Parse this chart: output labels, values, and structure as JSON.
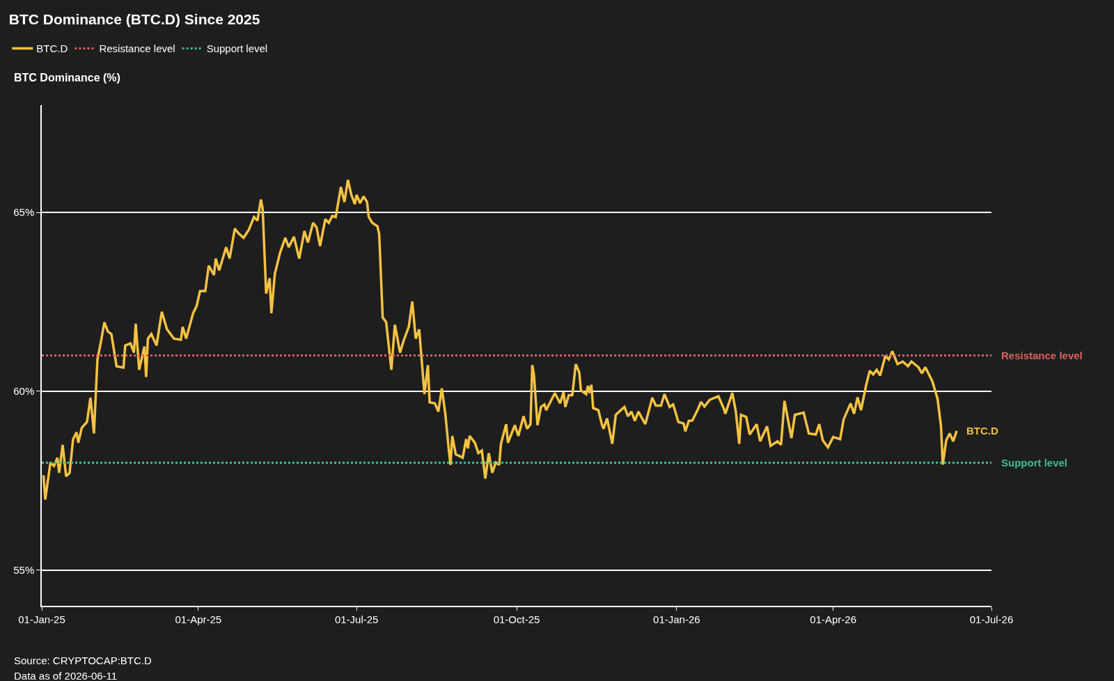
{
  "chart_data": {
    "type": "line",
    "title": "BTC Dominance (BTC.D) Since 2025",
    "ylabel": "BTC Dominance (%)",
    "annotations": [
      "Source: CRYPTOCAP:BTC.D",
      "Data as of 2026-06-11"
    ],
    "x": [
      "2025-01-02",
      "2025-01-03",
      "2025-01-06",
      "2025-01-08",
      "2025-01-10",
      "2025-01-11",
      "2025-01-13",
      "2025-01-15",
      "2025-01-17",
      "2025-01-19",
      "2025-01-21",
      "2025-01-22",
      "2025-01-24",
      "2025-01-27",
      "2025-01-29",
      "2025-01-31",
      "2025-02-02",
      "2025-02-04",
      "2025-02-06",
      "2025-02-08",
      "2025-02-10",
      "2025-02-13",
      "2025-02-17",
      "2025-02-18",
      "2025-02-21",
      "2025-02-23",
      "2025-02-24",
      "2025-02-26",
      "2025-03-01",
      "2025-03-02",
      "2025-03-03",
      "2025-03-05",
      "2025-03-08",
      "2025-03-11",
      "2025-03-14",
      "2025-03-18",
      "2025-03-22",
      "2025-03-23",
      "2025-03-25",
      "2025-03-29",
      "2025-03-31",
      "2025-04-02",
      "2025-04-05",
      "2025-04-07",
      "2025-04-10",
      "2025-04-11",
      "2025-04-13",
      "2025-04-17",
      "2025-04-19",
      "2025-04-22",
      "2025-04-24",
      "2025-04-27",
      "2025-04-30",
      "2025-05-03",
      "2025-05-05",
      "2025-05-07",
      "2025-05-08",
      "2025-05-10",
      "2025-05-12",
      "2025-05-13",
      "2025-05-15",
      "2025-05-18",
      "2025-05-21",
      "2025-05-23",
      "2025-05-26",
      "2025-05-29",
      "2025-06-01",
      "2025-06-03",
      "2025-06-06",
      "2025-06-08",
      "2025-06-10",
      "2025-06-13",
      "2025-06-15",
      "2025-06-17",
      "2025-06-19",
      "2025-06-22",
      "2025-06-24",
      "2025-06-26",
      "2025-06-28",
      "2025-06-30",
      "2025-07-01",
      "2025-07-03",
      "2025-07-05",
      "2025-07-07",
      "2025-07-08",
      "2025-07-10",
      "2025-07-13",
      "2025-07-14",
      "2025-07-16",
      "2025-07-18",
      "2025-07-21",
      "2025-07-23",
      "2025-07-26",
      "2025-07-28",
      "2025-07-31",
      "2025-08-02",
      "2025-08-04",
      "2025-08-06",
      "2025-08-09",
      "2025-08-11",
      "2025-08-12",
      "2025-08-15",
      "2025-08-17",
      "2025-08-19",
      "2025-08-21",
      "2025-08-23",
      "2025-08-24",
      "2025-08-25",
      "2025-08-27",
      "2025-08-31",
      "2025-09-02",
      "2025-09-03",
      "2025-09-04",
      "2025-09-07",
      "2025-09-09",
      "2025-09-11",
      "2025-09-13",
      "2025-09-15",
      "2025-09-17",
      "2025-09-19",
      "2025-09-21",
      "2025-09-22",
      "2025-09-25",
      "2025-09-26",
      "2025-09-30",
      "2025-10-02",
      "2025-10-05",
      "2025-10-07",
      "2025-10-09",
      "2025-10-10",
      "2025-10-11",
      "2025-10-13",
      "2025-10-15",
      "2025-10-17",
      "2025-10-18",
      "2025-10-23",
      "2025-10-26",
      "2025-10-28",
      "2025-10-29",
      "2025-10-31",
      "2025-11-02",
      "2025-11-04",
      "2025-11-06",
      "2025-11-07",
      "2025-11-10",
      "2025-11-11",
      "2025-11-12",
      "2025-11-13",
      "2025-11-14",
      "2025-11-17",
      "2025-11-19",
      "2025-11-20",
      "2025-11-22",
      "2025-11-25",
      "2025-11-27",
      "2025-11-29",
      "2025-12-02",
      "2025-12-04",
      "2025-12-06",
      "2025-12-08",
      "2025-12-10",
      "2025-12-14",
      "2025-12-18",
      "2025-12-20",
      "2025-12-23",
      "2025-12-25",
      "2025-12-28",
      "2025-12-30",
      "2026-01-02",
      "2026-01-05",
      "2026-01-06",
      "2026-01-08",
      "2026-01-10",
      "2026-01-13",
      "2026-01-15",
      "2026-01-17",
      "2026-01-20",
      "2026-01-25",
      "2026-01-28",
      "2026-01-29",
      "2026-02-02",
      "2026-02-04",
      "2026-02-06",
      "2026-02-07",
      "2026-02-10",
      "2026-02-12",
      "2026-02-16",
      "2026-02-18",
      "2026-02-22",
      "2026-02-24",
      "2026-02-28",
      "2026-03-02",
      "2026-03-04",
      "2026-03-08",
      "2026-03-10",
      "2026-03-15",
      "2026-03-18",
      "2026-03-22",
      "2026-03-24",
      "2026-03-26",
      "2026-03-29",
      "2026-04-01",
      "2026-04-05",
      "2026-04-07",
      "2026-04-11",
      "2026-04-13",
      "2026-04-15",
      "2026-04-17",
      "2026-04-20",
      "2026-04-22",
      "2026-04-24",
      "2026-04-26",
      "2026-04-28",
      "2026-05-01",
      "2026-05-03",
      "2026-05-05",
      "2026-05-08",
      "2026-05-11",
      "2026-05-14",
      "2026-05-16",
      "2026-05-20",
      "2026-05-22",
      "2026-05-24",
      "2026-05-28",
      "2026-05-31",
      "2026-06-02",
      "2026-06-03",
      "2026-06-05",
      "2026-06-07",
      "2026-06-09",
      "2026-06-11"
    ],
    "series": [
      {
        "name": "BTC.D",
        "color": "#f5c242",
        "values": [
          57.65,
          56.97,
          58.01,
          57.91,
          58.14,
          57.72,
          58.5,
          57.62,
          57.72,
          58.66,
          58.85,
          58.56,
          58.98,
          59.14,
          59.82,
          58.82,
          60.89,
          61.38,
          61.93,
          61.67,
          61.6,
          60.7,
          60.66,
          61.28,
          61.34,
          61.08,
          61.89,
          60.6,
          61.25,
          60.4,
          61.47,
          61.6,
          61.28,
          62.22,
          61.73,
          61.47,
          61.44,
          61.8,
          61.47,
          62.18,
          62.38,
          62.8,
          62.8,
          63.51,
          63.25,
          63.71,
          63.38,
          64.03,
          63.71,
          64.55,
          64.42,
          64.29,
          64.51,
          64.87,
          64.77,
          65.36,
          65.1,
          62.73,
          63.16,
          62.18,
          63.28,
          63.87,
          64.29,
          64.03,
          64.32,
          63.71,
          64.48,
          64.16,
          64.71,
          64.58,
          64.06,
          64.81,
          64.71,
          64.9,
          64.87,
          65.71,
          65.29,
          65.91,
          65.49,
          65.23,
          65.49,
          65.26,
          65.45,
          65.29,
          64.87,
          64.71,
          64.61,
          64.39,
          62.06,
          61.93,
          60.6,
          61.86,
          61.08,
          61.41,
          61.8,
          62.51,
          61.47,
          61.73,
          59.92,
          60.73,
          59.69,
          59.66,
          59.43,
          60.08,
          59.37,
          58.37,
          57.94,
          58.75,
          58.24,
          58.14,
          58.66,
          58.4,
          58.75,
          58.56,
          58.27,
          58.34,
          57.56,
          58.27,
          57.72,
          58.01,
          57.94,
          58.53,
          59.08,
          58.56,
          59.05,
          58.75,
          59.3,
          58.95,
          59.08,
          60.73,
          60.44,
          59.05,
          59.56,
          59.63,
          59.47,
          59.95,
          59.66,
          59.98,
          59.56,
          59.89,
          59.89,
          60.76,
          60.53,
          60.02,
          59.92,
          60.15,
          59.95,
          60.18,
          59.53,
          59.47,
          59.08,
          58.95,
          59.24,
          58.53,
          59.34,
          59.43,
          59.56,
          59.3,
          59.43,
          59.17,
          59.43,
          59.08,
          59.82,
          59.6,
          59.6,
          59.92,
          59.56,
          59.63,
          59.14,
          59.1,
          58.88,
          59.17,
          59.18,
          59.47,
          59.7,
          59.57,
          59.76,
          59.86,
          59.53,
          59.37,
          59.95,
          59.44,
          58.53,
          59.34,
          59.28,
          58.79,
          59.08,
          58.6,
          59.02,
          58.47,
          58.6,
          58.5,
          59.73,
          58.69,
          59.34,
          59.4,
          58.82,
          58.79,
          59.08,
          58.63,
          58.43,
          58.72,
          58.66,
          59.21,
          59.66,
          59.37,
          59.83,
          59.47,
          60.18,
          60.57,
          60.47,
          60.6,
          60.44,
          60.99,
          60.89,
          61.12,
          60.76,
          60.83,
          60.7,
          60.83,
          60.67,
          60.5,
          60.67,
          60.28,
          59.79,
          59.02,
          57.95,
          58.63,
          58.82,
          58.6,
          58.89
        ]
      }
    ],
    "ref_lines": [
      {
        "axis": "y",
        "value": 61,
        "label": "Resistance level",
        "color": "#d9625f",
        "line_style": "dotted"
      },
      {
        "axis": "y",
        "value": 58,
        "label": "Support level",
        "color": "#3fbf8c",
        "line_style": "dotted"
      }
    ],
    "xlim": [
      "2025-01-01",
      "2026-07-01"
    ],
    "xticks": [
      {
        "value": "2025-01-01",
        "label": "01-Jan-25"
      },
      {
        "value": "2025-04-01",
        "label": "01-Apr-25"
      },
      {
        "value": "2025-07-01",
        "label": "01-Jul-25"
      },
      {
        "value": "2025-10-01",
        "label": "01-Oct-25"
      },
      {
        "value": "2026-01-01",
        "label": "01-Jan-26"
      },
      {
        "value": "2026-04-01",
        "label": "01-Apr-26"
      },
      {
        "value": "2026-07-01",
        "label": "01-Jul-26"
      }
    ],
    "ylim": [
      54,
      68
    ],
    "yticks": [
      {
        "value": 55,
        "label": "55%"
      },
      {
        "value": 60,
        "label": "60%"
      },
      {
        "value": 65,
        "label": "65%"
      }
    ],
    "grid": "y",
    "legend": "top left",
    "marker": "none",
    "line_style": "solid"
  }
}
